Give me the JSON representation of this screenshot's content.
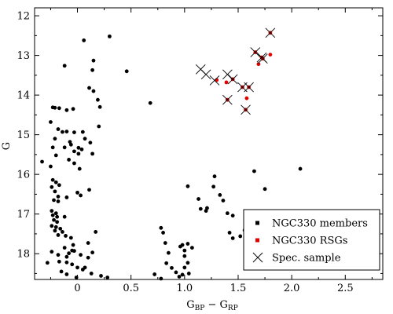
{
  "chart_data": {
    "type": "scatter",
    "title": "",
    "xlabel": "G",
    "xlabel_sub_1": "BP",
    "xlabel_sep": " − G",
    "xlabel_sub_2": "RP",
    "ylabel": "G",
    "xlim": [
      -0.4,
      2.85
    ],
    "ylim": [
      18.65,
      11.8
    ],
    "y_inverted": true,
    "grid": false,
    "legend_position": "bottom-right",
    "xticks": [
      {
        "value": 0,
        "label": "0"
      },
      {
        "value": 0.5,
        "label": "0.5"
      },
      {
        "value": 1,
        "label": "1.0"
      },
      {
        "value": 1.5,
        "label": "1.5"
      },
      {
        "value": 2,
        "label": "2.0"
      },
      {
        "value": 2.5,
        "label": "2.5"
      }
    ],
    "yticks": [
      {
        "value": 12,
        "label": "12"
      },
      {
        "value": 13,
        "label": "13"
      },
      {
        "value": 14,
        "label": "14"
      },
      {
        "value": 15,
        "label": "15"
      },
      {
        "value": 16,
        "label": "16"
      },
      {
        "value": 17,
        "label": "17"
      },
      {
        "value": 18,
        "label": "18"
      }
    ],
    "series": [
      {
        "name": "NGC330 members",
        "marker": "dot",
        "color": "#000000",
        "points": [
          [
            -0.12,
            13.26
          ],
          [
            0.06,
            12.62
          ],
          [
            0.3,
            12.52
          ],
          [
            0.15,
            13.13
          ],
          [
            0.14,
            13.37
          ],
          [
            0.46,
            13.4
          ],
          [
            0.11,
            13.82
          ],
          [
            0.15,
            13.9
          ],
          [
            0.19,
            14.12
          ],
          [
            0.21,
            14.3
          ],
          [
            0.68,
            14.2
          ],
          [
            -0.23,
            14.31
          ],
          [
            -0.21,
            14.32
          ],
          [
            -0.17,
            14.33
          ],
          [
            -0.1,
            14.38
          ],
          [
            -0.04,
            14.35
          ],
          [
            -0.25,
            14.68
          ],
          [
            -0.18,
            14.86
          ],
          [
            -0.14,
            14.93
          ],
          [
            -0.1,
            14.92
          ],
          [
            -0.03,
            14.94
          ],
          [
            0.05,
            14.93
          ],
          [
            -0.07,
            15.18
          ],
          [
            0.07,
            15.1
          ],
          [
            0.12,
            15.2
          ],
          [
            0.2,
            14.79
          ],
          [
            -0.21,
            15.1
          ],
          [
            -0.23,
            15.32
          ],
          [
            -0.12,
            15.32
          ],
          [
            -0.06,
            15.25
          ],
          [
            0.01,
            15.33
          ],
          [
            0.04,
            15.37
          ],
          [
            0.14,
            15.48
          ],
          [
            -0.03,
            15.42
          ],
          [
            -0.2,
            15.52
          ],
          [
            0.01,
            15.48
          ],
          [
            -0.33,
            15.68
          ],
          [
            -0.25,
            15.8
          ],
          [
            -0.08,
            15.63
          ],
          [
            -0.03,
            15.72
          ],
          [
            0.02,
            15.86
          ],
          [
            -0.23,
            16.14
          ],
          [
            -0.2,
            16.2
          ],
          [
            -0.17,
            16.27
          ],
          [
            -0.24,
            16.32
          ],
          [
            -0.21,
            16.43
          ],
          [
            -0.18,
            16.56
          ],
          [
            -0.1,
            16.58
          ],
          [
            -0.22,
            16.65
          ],
          [
            -0.18,
            16.68
          ],
          [
            0.0,
            16.46
          ],
          [
            0.03,
            16.53
          ],
          [
            0.11,
            16.39
          ],
          [
            -0.24,
            16.92
          ],
          [
            -0.2,
            16.98
          ],
          [
            -0.23,
            17.03
          ],
          [
            -0.19,
            17.07
          ],
          [
            -0.12,
            17.07
          ],
          [
            -0.22,
            17.15
          ],
          [
            -0.19,
            17.2
          ],
          [
            -0.24,
            17.3
          ],
          [
            -0.2,
            17.33
          ],
          [
            -0.16,
            17.37
          ],
          [
            -0.21,
            17.42
          ],
          [
            -0.14,
            17.45
          ],
          [
            -0.18,
            17.53
          ],
          [
            -0.11,
            17.55
          ],
          [
            -0.06,
            17.6
          ],
          [
            -0.04,
            17.78
          ],
          [
            -0.12,
            17.85
          ],
          [
            -0.03,
            17.93
          ],
          [
            0.1,
            17.73
          ],
          [
            0.14,
            17.97
          ],
          [
            0.17,
            17.45
          ],
          [
            -0.18,
            18.03
          ],
          [
            -0.24,
            17.95
          ],
          [
            -0.1,
            18.08
          ],
          [
            -0.17,
            18.2
          ],
          [
            -0.1,
            18.22
          ],
          [
            -0.05,
            18.27
          ],
          [
            0.0,
            18.35
          ],
          [
            0.05,
            18.4
          ],
          [
            -0.28,
            18.23
          ],
          [
            -0.15,
            18.45
          ],
          [
            -0.1,
            18.52
          ],
          [
            -0.01,
            18.6
          ],
          [
            0.07,
            18.35
          ],
          [
            0.13,
            18.5
          ],
          [
            0.22,
            18.56
          ],
          [
            0.28,
            18.6
          ],
          [
            -0.05,
            17.92
          ],
          [
            0.03,
            18.03
          ],
          [
            0.1,
            18.1
          ],
          [
            -0.08,
            17.99
          ],
          [
            1.03,
            16.3
          ],
          [
            1.13,
            16.62
          ],
          [
            1.15,
            16.87
          ],
          [
            1.2,
            16.92
          ],
          [
            1.21,
            16.85
          ],
          [
            1.27,
            16.31
          ],
          [
            1.28,
            16.05
          ],
          [
            1.33,
            16.52
          ],
          [
            1.36,
            16.66
          ],
          [
            1.4,
            16.98
          ],
          [
            1.45,
            17.04
          ],
          [
            1.42,
            17.47
          ],
          [
            1.45,
            17.61
          ],
          [
            1.52,
            17.56
          ],
          [
            1.56,
            17.41
          ],
          [
            1.63,
            17.31
          ],
          [
            1.65,
            15.92
          ],
          [
            1.75,
            16.37
          ],
          [
            2.08,
            15.86
          ],
          [
            0.78,
            17.35
          ],
          [
            0.8,
            17.47
          ],
          [
            0.82,
            17.73
          ],
          [
            0.85,
            17.98
          ],
          [
            0.83,
            18.24
          ],
          [
            0.88,
            18.36
          ],
          [
            0.95,
            18.58
          ],
          [
            0.72,
            18.52
          ],
          [
            0.78,
            18.63
          ],
          [
            0.98,
            17.78
          ],
          [
            1.0,
            17.92
          ],
          [
            1.03,
            17.75
          ],
          [
            1.0,
            18.06
          ],
          [
            1.03,
            18.23
          ],
          [
            1.0,
            18.35
          ],
          [
            1.04,
            18.5
          ],
          [
            0.98,
            18.53
          ],
          [
            0.96,
            17.82
          ],
          [
            1.07,
            17.85
          ],
          [
            0.92,
            18.47
          ]
        ]
      },
      {
        "name": "NGC330 RSGs",
        "marker": "dot",
        "color": "#e00000",
        "points": [
          [
            1.8,
            12.43
          ],
          [
            1.66,
            12.92
          ],
          [
            1.72,
            13.05
          ],
          [
            1.73,
            13.08
          ],
          [
            1.8,
            12.98
          ],
          [
            1.69,
            13.22
          ],
          [
            1.3,
            13.62
          ],
          [
            1.39,
            13.68
          ],
          [
            1.45,
            13.6
          ],
          [
            1.54,
            13.8
          ],
          [
            1.6,
            13.8
          ],
          [
            1.58,
            14.08
          ],
          [
            1.4,
            14.12
          ],
          [
            1.57,
            14.37
          ]
        ]
      },
      {
        "name": "Spec. sample",
        "marker": "x",
        "color": "#000000",
        "points": [
          [
            1.8,
            12.43
          ],
          [
            1.66,
            12.92
          ],
          [
            1.72,
            13.05
          ],
          [
            1.73,
            13.08
          ],
          [
            1.15,
            13.35
          ],
          [
            1.2,
            13.48
          ],
          [
            1.28,
            13.63
          ],
          [
            1.4,
            13.48
          ],
          [
            1.45,
            13.6
          ],
          [
            1.54,
            13.8
          ],
          [
            1.6,
            13.8
          ],
          [
            1.4,
            14.12
          ],
          [
            1.57,
            14.37
          ]
        ]
      }
    ]
  }
}
